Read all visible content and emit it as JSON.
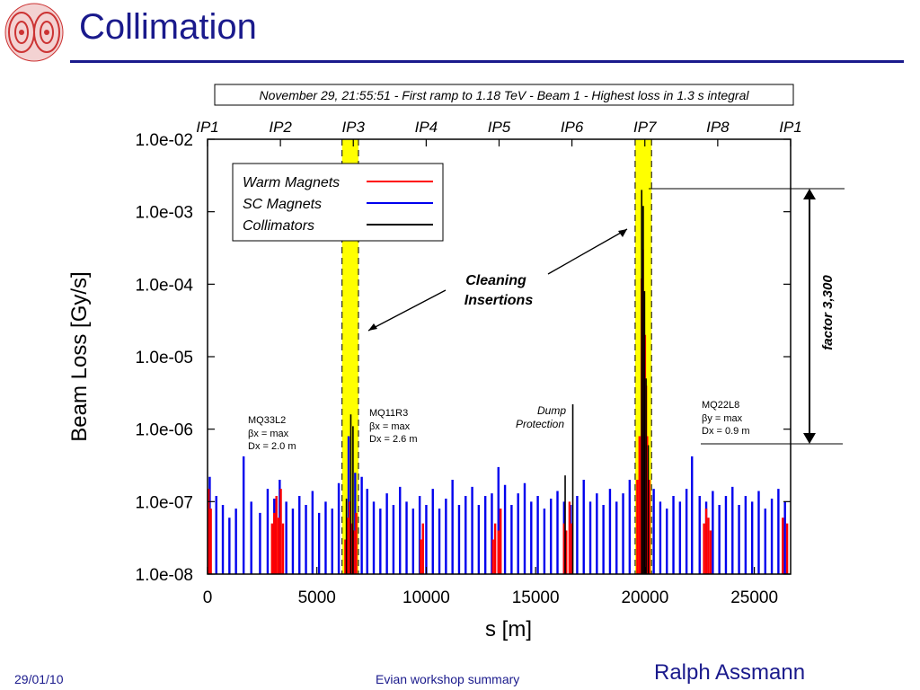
{
  "slide": {
    "title": "Collimation",
    "footer_date": "29/01/10",
    "footer_center": "Evian workshop summary",
    "footer_author": "Ralph Assmann"
  },
  "colors": {
    "title": "#1a1a8c",
    "warm": "#ff0000",
    "sc": "#0000ee",
    "coll": "#000000",
    "highlight": "#ffff00"
  },
  "chart_data": {
    "type": "bar",
    "title": "November 29, 21:55:51 - First ramp to 1.18 TeV - Beam 1 - Highest loss in 1.3 s integral",
    "xlabel": "s [m]",
    "ylabel": "Beam Loss [Gy/s]",
    "x_scale": "linear",
    "y_scale": "log",
    "xlim": [
      0,
      26659
    ],
    "ylim": [
      1e-08,
      0.01
    ],
    "x_ticks": [
      0,
      5000,
      10000,
      15000,
      20000,
      25000
    ],
    "x_tick_labels": [
      "0",
      "5000",
      "10000",
      "15000",
      "20000",
      "25000"
    ],
    "y_ticks": [
      1e-08,
      1e-07,
      1e-06,
      1e-05,
      0.0001,
      0.001,
      0.01
    ],
    "y_tick_labels": [
      "1.0e-08",
      "1.0e-07",
      "1.0e-06",
      "1.0e-05",
      "1.0e-04",
      "1.0e-03",
      "1.0e-02"
    ],
    "ip_labels": [
      {
        "label": "IP1",
        "s": 0
      },
      {
        "label": "IP2",
        "s": 3332
      },
      {
        "label": "IP3",
        "s": 6664
      },
      {
        "label": "IP4",
        "s": 9997
      },
      {
        "label": "IP5",
        "s": 13329
      },
      {
        "label": "IP6",
        "s": 16661
      },
      {
        "label": "IP7",
        "s": 19994
      },
      {
        "label": "IP8",
        "s": 23326
      },
      {
        "label": "IP1",
        "s": 26659
      }
    ],
    "highlight_bands": [
      {
        "name": "IP3",
        "s_start": 6150,
        "s_end": 6900
      },
      {
        "name": "IP7",
        "s_start": 19550,
        "s_end": 20300
      }
    ],
    "legend": {
      "placement": "top-left",
      "entries": [
        {
          "name": "Warm Magnets",
          "color": "#ff0000"
        },
        {
          "name": "SC Magnets",
          "color": "#0000ee"
        },
        {
          "name": "Collimators",
          "color": "#000000"
        }
      ]
    },
    "series": [
      {
        "name": "Warm Magnets",
        "color": "#ff0000",
        "points": [
          [
            50,
            1.5e-07
          ],
          [
            150,
            8e-08
          ],
          [
            2950,
            5e-08
          ],
          [
            3050,
            7e-08
          ],
          [
            3150,
            1.2e-07
          ],
          [
            3250,
            6e-08
          ],
          [
            3350,
            1.5e-07
          ],
          [
            3450,
            5e-08
          ],
          [
            6300,
            3e-08
          ],
          [
            6400,
            6e-08
          ],
          [
            6500,
            1e-07
          ],
          [
            6600,
            5e-08
          ],
          [
            6700,
            4e-08
          ],
          [
            6800,
            7e-08
          ],
          [
            9750,
            3e-08
          ],
          [
            9850,
            5e-08
          ],
          [
            13050,
            3e-08
          ],
          [
            13150,
            5e-08
          ],
          [
            13300,
            4e-08
          ],
          [
            13400,
            8e-08
          ],
          [
            16300,
            5e-08
          ],
          [
            16400,
            4e-08
          ],
          [
            16550,
            1e-07
          ],
          [
            16650,
            5e-08
          ],
          [
            19650,
            2e-07
          ],
          [
            19750,
            8e-07
          ],
          [
            19850,
            0.00012
          ],
          [
            19900,
            0.0003
          ],
          [
            19950,
            8e-05
          ],
          [
            20000,
            2e-05
          ],
          [
            20050,
            4e-06
          ],
          [
            20100,
            8e-07
          ],
          [
            20200,
            2e-07
          ],
          [
            22700,
            5e-08
          ],
          [
            22800,
            8e-08
          ],
          [
            22900,
            6e-08
          ],
          [
            23000,
            4e-08
          ],
          [
            26300,
            6e-08
          ],
          [
            26500,
            5e-08
          ]
        ]
      },
      {
        "name": "SC Magnets",
        "color": "#0000ee",
        "points": [
          [
            100,
            2.2e-07
          ],
          [
            400,
            1.2e-07
          ],
          [
            700,
            9e-08
          ],
          [
            1000,
            6e-08
          ],
          [
            1300,
            8e-08
          ],
          [
            1650,
            4.2e-07
          ],
          [
            2000,
            1e-07
          ],
          [
            2400,
            7e-08
          ],
          [
            2750,
            1.5e-07
          ],
          [
            3050,
            1.1e-07
          ],
          [
            3300,
            2e-07
          ],
          [
            3600,
            1e-07
          ],
          [
            3900,
            8e-08
          ],
          [
            4200,
            1.2e-07
          ],
          [
            4500,
            9e-08
          ],
          [
            4800,
            1.4e-07
          ],
          [
            5100,
            7e-08
          ],
          [
            5400,
            1e-07
          ],
          [
            5700,
            8e-08
          ],
          [
            6000,
            1.8e-07
          ],
          [
            6450,
            8e-07
          ],
          [
            6750,
            2.5e-07
          ],
          [
            7050,
            2.2e-07
          ],
          [
            7300,
            1.5e-07
          ],
          [
            7600,
            1e-07
          ],
          [
            7900,
            8e-08
          ],
          [
            8200,
            1.3e-07
          ],
          [
            8500,
            9e-08
          ],
          [
            8800,
            1.6e-07
          ],
          [
            9100,
            1e-07
          ],
          [
            9400,
            8e-08
          ],
          [
            9700,
            1.2e-07
          ],
          [
            10000,
            9e-08
          ],
          [
            10300,
            1.5e-07
          ],
          [
            10600,
            8e-08
          ],
          [
            10900,
            1.1e-07
          ],
          [
            11200,
            2e-07
          ],
          [
            11500,
            9e-08
          ],
          [
            11800,
            1.2e-07
          ],
          [
            12100,
            1.6e-07
          ],
          [
            12400,
            9e-08
          ],
          [
            12700,
            1.2e-07
          ],
          [
            13000,
            1.3e-07
          ],
          [
            13300,
            3e-07
          ],
          [
            13600,
            1.7e-07
          ],
          [
            13900,
            9e-08
          ],
          [
            14200,
            1.3e-07
          ],
          [
            14500,
            1.8e-07
          ],
          [
            14800,
            1e-07
          ],
          [
            15100,
            1.2e-07
          ],
          [
            15400,
            8e-08
          ],
          [
            15700,
            1.1e-07
          ],
          [
            16000,
            1.4e-07
          ],
          [
            16300,
            1e-07
          ],
          [
            16600,
            9e-08
          ],
          [
            16900,
            1.2e-07
          ],
          [
            17200,
            2e-07
          ],
          [
            17500,
            1e-07
          ],
          [
            17800,
            1.3e-07
          ],
          [
            18100,
            9e-08
          ],
          [
            18400,
            1.5e-07
          ],
          [
            18700,
            1e-07
          ],
          [
            19000,
            1.3e-07
          ],
          [
            19300,
            2e-07
          ],
          [
            20400,
            1.5e-07
          ],
          [
            20700,
            1e-07
          ],
          [
            21000,
            8e-08
          ],
          [
            21300,
            1.2e-07
          ],
          [
            21600,
            1e-07
          ],
          [
            21900,
            1.5e-07
          ],
          [
            22150,
            4.2e-07
          ],
          [
            22500,
            1.2e-07
          ],
          [
            22800,
            1e-07
          ],
          [
            23100,
            1.4e-07
          ],
          [
            23400,
            9e-08
          ],
          [
            23700,
            1.2e-07
          ],
          [
            24000,
            1.6e-07
          ],
          [
            24300,
            9e-08
          ],
          [
            24600,
            1.2e-07
          ],
          [
            24900,
            1e-07
          ],
          [
            25200,
            1.4e-07
          ],
          [
            25500,
            8e-08
          ],
          [
            25800,
            1.1e-07
          ],
          [
            26100,
            1.5e-07
          ],
          [
            26400,
            1e-07
          ]
        ]
      },
      {
        "name": "Collimators",
        "color": "#000000",
        "points": [
          [
            6350,
            1.1e-07
          ],
          [
            6550,
            1.6e-06
          ],
          [
            6650,
            1.1e-06
          ],
          [
            16350,
            2.3e-07
          ],
          [
            16700,
            2.2e-06
          ],
          [
            19850,
            0.002
          ],
          [
            19920,
            0.0012
          ],
          [
            19980,
            8e-05
          ],
          [
            20050,
            5e-06
          ],
          [
            20150,
            6e-07
          ]
        ]
      }
    ],
    "annotations": [
      {
        "id": "mq33l2",
        "lines": [
          "MQ33L2",
          "βx = max",
          "Dx = 2.0 m"
        ]
      },
      {
        "id": "mq11r3",
        "lines": [
          "MQ11R3",
          "βx = max",
          "Dx = 2.6 m"
        ]
      },
      {
        "id": "dump",
        "lines": [
          "Dump",
          "Protection"
        ]
      },
      {
        "id": "mq22l8",
        "lines": [
          "MQ22L8",
          "βy = max",
          "Dx = 0.9 m"
        ]
      },
      {
        "id": "cleaning",
        "lines": [
          "Cleaning",
          "Insertions"
        ]
      },
      {
        "id": "factor",
        "lines": [
          "factor 3,300"
        ]
      }
    ]
  }
}
